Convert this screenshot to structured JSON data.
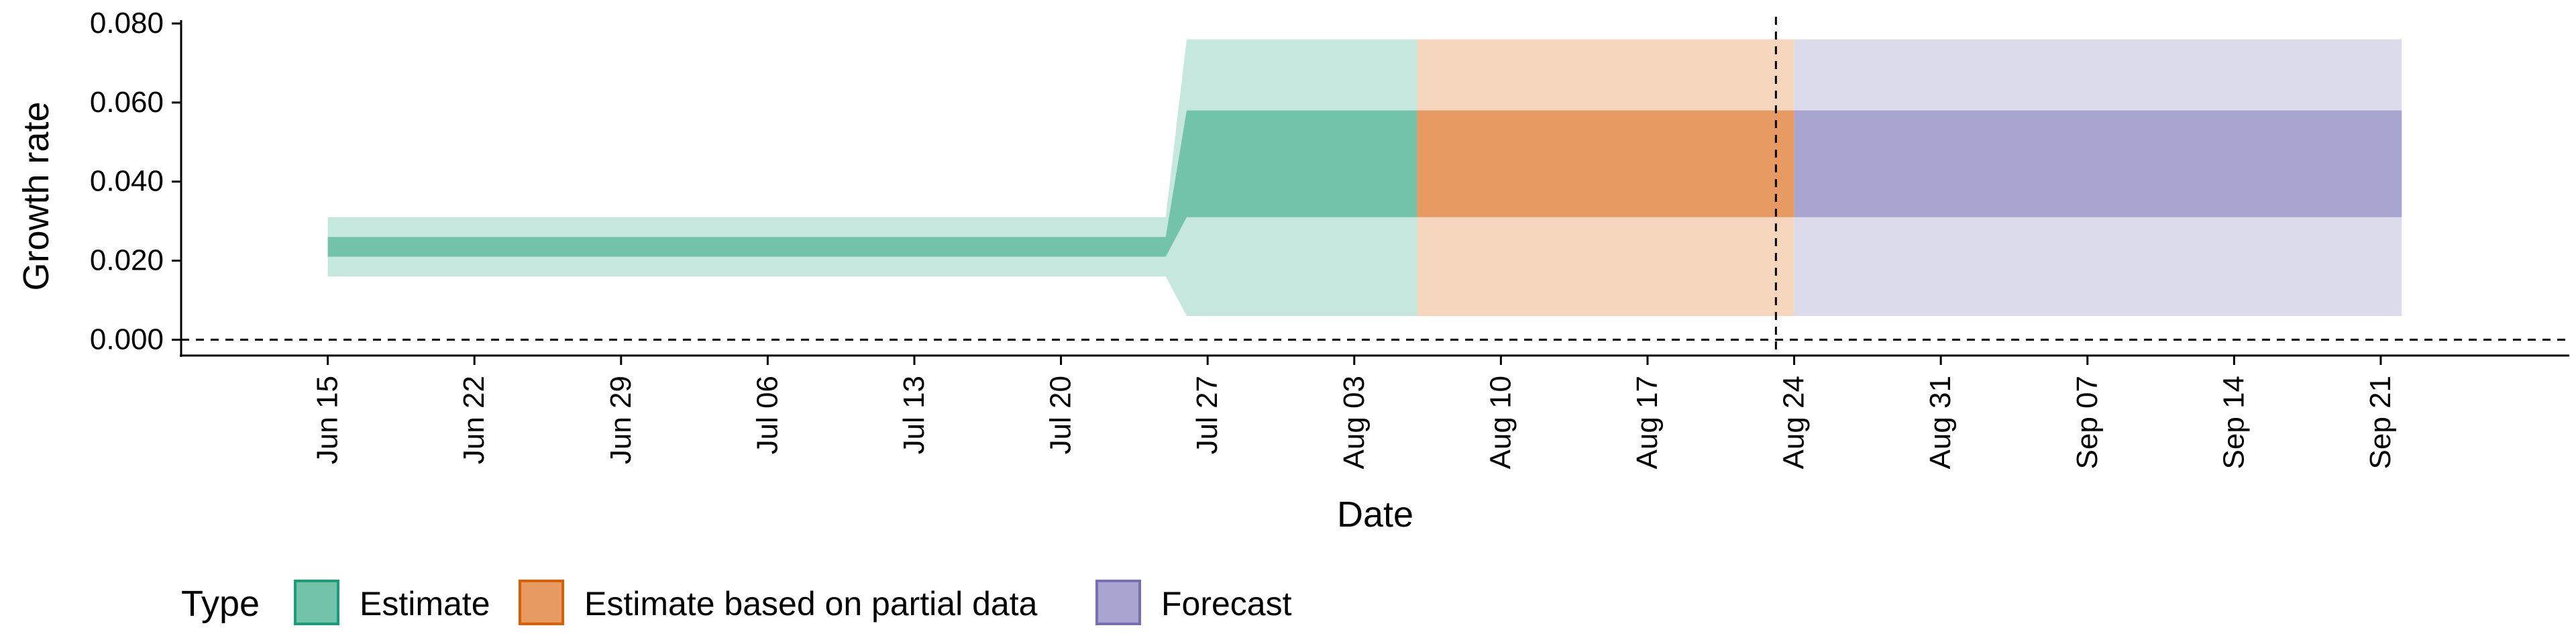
{
  "chart_data": {
    "type": "area",
    "xlabel": "Date",
    "ylabel": "Growth rate",
    "x_range": [
      "2020-06-08",
      "2020-09-30"
    ],
    "ylim": [
      -0.004,
      0.08
    ],
    "y_ticks": [
      0.0,
      0.02,
      0.04,
      0.06,
      0.08
    ],
    "y_tick_labels": [
      "0.000",
      "0.020",
      "0.040",
      "0.060",
      "0.080"
    ],
    "x_ticks": [
      "2020-06-15",
      "2020-06-22",
      "2020-06-29",
      "2020-07-06",
      "2020-07-13",
      "2020-07-20",
      "2020-07-27",
      "2020-08-03",
      "2020-08-10",
      "2020-08-17",
      "2020-08-24",
      "2020-08-31",
      "2020-09-07",
      "2020-09-14",
      "2020-09-21"
    ],
    "x_tick_labels": [
      "Jun 15",
      "Jun 22",
      "Jun 29",
      "Jul 06",
      "Jul 13",
      "Jul 20",
      "Jul 27",
      "Aug 03",
      "Aug 10",
      "Aug 17",
      "Aug 24",
      "Aug 31",
      "Sep 07",
      "Sep 14",
      "Sep 21"
    ],
    "grid": false,
    "hlines": [
      0.0
    ],
    "vlines": [
      "2020-08-23"
    ],
    "legend": {
      "title": "Type",
      "position": "bottom-left",
      "items": [
        "Estimate",
        "Estimate based on partial data",
        "Forecast"
      ]
    },
    "series": [
      {
        "name": "Estimate",
        "color_outer": "#c5e7dd",
        "color_inner": "#72c3a9",
        "points": [
          {
            "x": "2020-06-15",
            "lower90": 0.016,
            "lower50": 0.021,
            "upper50": 0.026,
            "upper90": 0.031
          },
          {
            "x": "2020-07-25",
            "lower90": 0.016,
            "lower50": 0.021,
            "upper50": 0.026,
            "upper90": 0.031
          },
          {
            "x": "2020-07-26",
            "lower90": 0.006,
            "lower50": 0.031,
            "upper50": 0.058,
            "upper90": 0.076
          },
          {
            "x": "2020-08-05",
            "lower90": 0.006,
            "lower50": 0.031,
            "upper50": 0.058,
            "upper90": 0.076
          }
        ]
      },
      {
        "name": "Estimate based on partial data",
        "color_outer": "#f6d6bd",
        "color_inner": "#e89a63",
        "points": [
          {
            "x": "2020-08-06",
            "lower90": 0.006,
            "lower50": 0.031,
            "upper50": 0.058,
            "upper90": 0.076
          },
          {
            "x": "2020-08-23",
            "lower90": 0.006,
            "lower50": 0.031,
            "upper50": 0.058,
            "upper90": 0.076
          }
        ]
      },
      {
        "name": "Forecast",
        "color_outer": "#dcdbec",
        "color_inner": "#a8a5d0",
        "points": [
          {
            "x": "2020-08-24",
            "lower90": 0.006,
            "lower50": 0.031,
            "upper50": 0.058,
            "upper90": 0.076
          },
          {
            "x": "2020-09-21",
            "lower90": 0.006,
            "lower50": 0.031,
            "upper50": 0.058,
            "upper90": 0.076
          }
        ]
      }
    ],
    "legend_colors": {
      "Estimate": {
        "fill": "#72c3a9",
        "stroke": "#1b9e77"
      },
      "Estimate based on partial data": {
        "fill": "#e89a63",
        "stroke": "#d95f02"
      },
      "Forecast": {
        "fill": "#a8a5d0",
        "stroke": "#7570b3"
      }
    }
  }
}
